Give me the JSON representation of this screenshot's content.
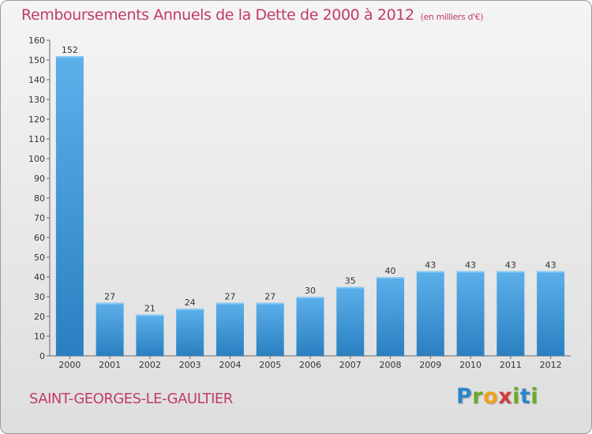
{
  "chart_data": {
    "type": "bar",
    "title": "Remboursements Annuels de la Dette de 2000 à 2012",
    "unit": "(en milliers d'€)",
    "categories": [
      "2000",
      "2001",
      "2002",
      "2003",
      "2004",
      "2005",
      "2006",
      "2007",
      "2008",
      "2009",
      "2010",
      "2011",
      "2012"
    ],
    "values": [
      152,
      27,
      21,
      24,
      27,
      27,
      30,
      35,
      40,
      43,
      43,
      43,
      43
    ],
    "ylim": [
      0,
      160
    ],
    "yticks": [
      0,
      10,
      20,
      30,
      40,
      50,
      60,
      70,
      80,
      90,
      100,
      110,
      120,
      130,
      140,
      150,
      160
    ],
    "grid": false,
    "bar_color_top": "#5cb0ea",
    "bar_color_bottom": "#2a7fc1"
  },
  "footer": {
    "commune": "SAINT-GEORGES-LE-GAULTIER",
    "logo_letters": [
      "P",
      "r",
      "o",
      "x",
      "i",
      "t",
      "i"
    ],
    "logo_colors": [
      "#2c86c9",
      "#6aaa2a",
      "#f0a21a",
      "#d43c3c",
      "#6aaa2a",
      "#2c86c9",
      "#6aaa2a"
    ]
  },
  "colors": {
    "title": "#c23a6d",
    "background": "#e9e9e9"
  }
}
